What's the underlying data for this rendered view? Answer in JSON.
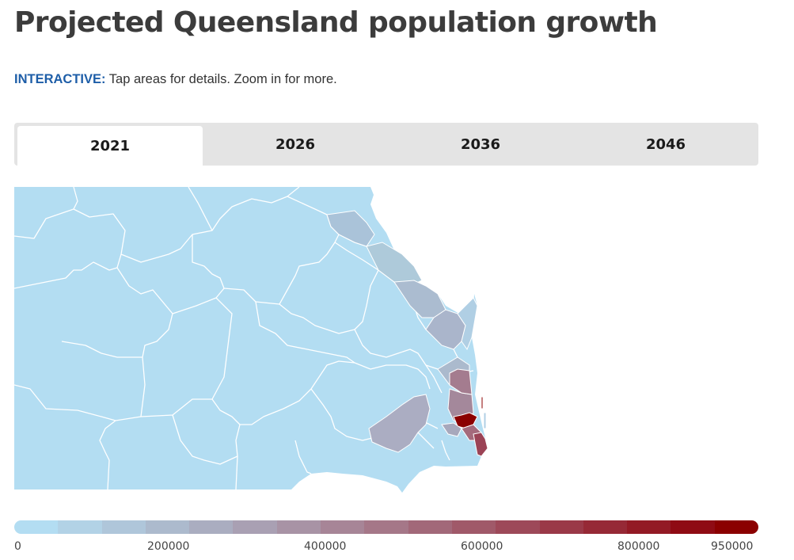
{
  "page": {
    "title": "Projected Queensland population growth",
    "instructions_keyword": "INTERACTIVE:",
    "instructions_text": " Tap areas for details. Zoom in for more."
  },
  "tabs": [
    {
      "label": "2021",
      "selected": true
    },
    {
      "label": "2026",
      "selected": false
    },
    {
      "label": "2036",
      "selected": false
    },
    {
      "label": "2046",
      "selected": false
    }
  ],
  "legend": {
    "labels": [
      "0",
      "200000",
      "400000",
      "600000",
      "800000",
      "950000"
    ],
    "min": 0,
    "max": 950000,
    "colors": [
      "#b3ddf2",
      "#b2d2e6",
      "#afc6da",
      "#acbacd",
      "#aaadc0",
      "#a9a0b3",
      "#a893a5",
      "#a78597",
      "#a57788",
      "#a26879",
      "#a05969",
      "#9d4959",
      "#9a3948",
      "#962936",
      "#931a25",
      "#8f0b14",
      "#8b0000"
    ]
  },
  "map": {
    "background_color": "#b3ddf2",
    "border_color": "#ffffff"
  }
}
